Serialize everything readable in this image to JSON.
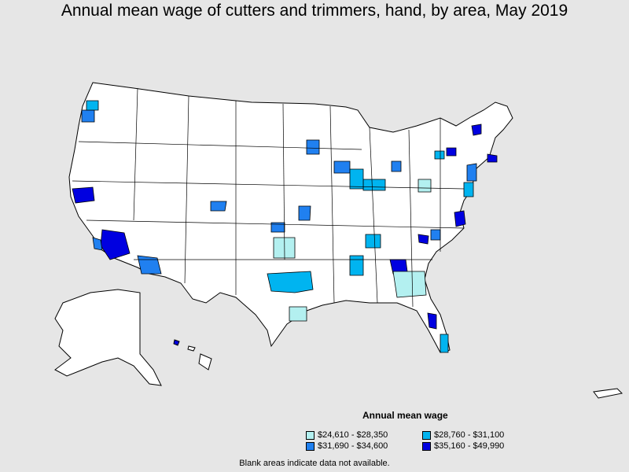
{
  "title": "Annual mean wage of cutters and trimmers, hand, by area, May 2019",
  "legend": {
    "title": "Annual mean wage",
    "items": [
      {
        "label": "$24,610 - $28,350",
        "color": "#b3f0f0"
      },
      {
        "label": "$28,760 - $31,100",
        "color": "#00b4f0"
      },
      {
        "label": "$31,690 - $34,600",
        "color": "#2080f0"
      },
      {
        "label": "$35,160 - $49,990",
        "color": "#0000e0"
      }
    ]
  },
  "footnote": "Blank areas indicate data not available.",
  "colors": {
    "background": "#e6e6e6",
    "land": "#ffffff",
    "border": "#000000"
  }
}
